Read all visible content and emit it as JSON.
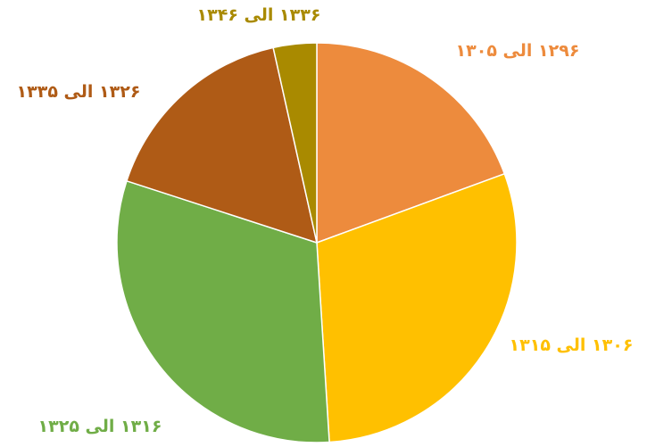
{
  "chart_data": {
    "type": "pie",
    "title": "",
    "legend": "none",
    "slices": [
      {
        "label": "۱۲۹۶ الی ۱۳۰۵",
        "value": 19.4,
        "color": "#ED8B3D"
      },
      {
        "label": "۱۳۰۶ الی ۱۳۱۵",
        "value": 29.6,
        "color": "#FFC000"
      },
      {
        "label": "۱۳۱۶ الی ۱۳۲۵",
        "value": 31.0,
        "color": "#70AD47"
      },
      {
        "label": "۱۳۲۶ الی ۱۳۳۵",
        "value": 16.5,
        "color": "#AF5B16"
      },
      {
        "label": "۱۳۳۶ الی ۱۳۴۶",
        "value": 3.5,
        "color": "#A98A00"
      }
    ]
  }
}
